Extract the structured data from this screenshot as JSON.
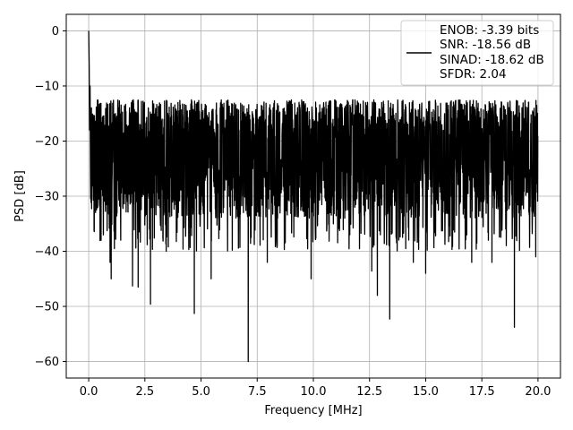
{
  "chart_data": {
    "type": "line",
    "title": "",
    "xlabel": "Frequency [MHz]",
    "ylabel": "PSD [dB]",
    "xlim": [
      -1.0,
      21.0
    ],
    "ylim": [
      -63.0,
      3.0
    ],
    "xticks": [
      0.0,
      2.5,
      5.0,
      7.5,
      10.0,
      12.5,
      15.0,
      17.5,
      20.0
    ],
    "xtick_labels": [
      "0.0",
      "2.5",
      "5.0",
      "7.5",
      "10.0",
      "12.5",
      "15.0",
      "17.5",
      "20.0"
    ],
    "yticks": [
      0,
      -10,
      -20,
      -30,
      -40,
      -50,
      -60
    ],
    "ytick_labels": [
      "0",
      "−10",
      "−20",
      "−30",
      "−40",
      "−50",
      "−60"
    ],
    "grid": true,
    "legend": {
      "placement": "top-right",
      "lines": [
        "ENOB: -3.39 bits",
        "SNR: -18.56 dB",
        "SINAD: -18.62 dB",
        "SFDR: 2.04"
      ]
    },
    "series": [
      {
        "color": "#000000",
        "x_range": [
          0.0,
          20.0
        ],
        "noise_band": [
          -35.0,
          -12.0
        ],
        "peak": {
          "x": 0.0,
          "y": 0.0
        },
        "dips": [
          {
            "x": 0.55,
            "y": -38.0
          },
          {
            "x": 0.95,
            "y": -42.0
          },
          {
            "x": 1.0,
            "y": -45.0
          },
          {
            "x": 1.95,
            "y": -46.3
          },
          {
            "x": 2.2,
            "y": -46.5
          },
          {
            "x": 2.75,
            "y": -49.6
          },
          {
            "x": 3.45,
            "y": -40.0
          },
          {
            "x": 4.7,
            "y": -51.3
          },
          {
            "x": 5.45,
            "y": -45.0
          },
          {
            "x": 7.1,
            "y": -60.0
          },
          {
            "x": 7.95,
            "y": -42.0
          },
          {
            "x": 9.9,
            "y": -45.0
          },
          {
            "x": 12.6,
            "y": -43.6
          },
          {
            "x": 12.85,
            "y": -48.0
          },
          {
            "x": 13.4,
            "y": -52.3
          },
          {
            "x": 14.45,
            "y": -42.0
          },
          {
            "x": 15.0,
            "y": -44.0
          },
          {
            "x": 17.05,
            "y": -42.0
          },
          {
            "x": 17.95,
            "y": -42.0
          },
          {
            "x": 18.95,
            "y": -53.8
          },
          {
            "x": 19.9,
            "y": -41.0
          }
        ]
      }
    ]
  }
}
